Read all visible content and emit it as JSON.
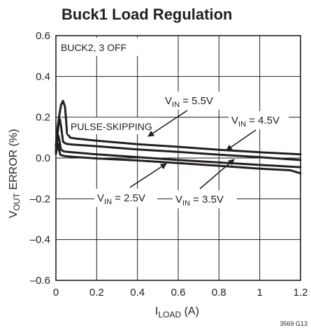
{
  "chart_data": {
    "type": "line",
    "title": "Buck1 Load Regulation",
    "xlabel": {
      "main": "I",
      "sub": "LOAD",
      "unit": " (A)"
    },
    "ylabel": {
      "main": "V",
      "sub": "OUT",
      "unit": " ERROR (%)"
    },
    "xlim": [
      0,
      1.2
    ],
    "ylim": [
      -0.6,
      0.6
    ],
    "x_ticks": [
      0,
      0.2,
      0.4,
      0.6,
      0.8,
      1.0,
      1.2
    ],
    "x_tick_labels": [
      "0",
      "0.2",
      "0.4",
      "0.6",
      "0.8",
      "1",
      "1.2"
    ],
    "y_ticks": [
      -0.6,
      -0.4,
      -0.2,
      0.0,
      0.2,
      0.4,
      0.6
    ],
    "y_tick_labels": [
      "–0.6",
      "–0.4",
      "–0.2",
      "0.0",
      "0.2",
      "0.4",
      "0.6"
    ],
    "grid": true,
    "condition_label": "BUCK2, 3 OFF",
    "mode_label": "PULSE-SKIPPING",
    "figure_code": "3569 G13",
    "series": [
      {
        "name": "V_IN = 5.5V",
        "x": [
          0.0,
          0.005,
          0.015,
          0.025,
          0.035,
          0.045,
          0.055,
          0.07,
          0.1,
          0.2,
          0.4,
          0.6,
          0.8,
          1.0,
          1.2
        ],
        "y": [
          0.06,
          0.12,
          0.2,
          0.26,
          0.28,
          0.25,
          0.12,
          0.1,
          0.095,
          0.085,
          0.068,
          0.055,
          0.04,
          0.028,
          0.018
        ]
      },
      {
        "name": "V_IN = 4.5V",
        "x": [
          0.0,
          0.006,
          0.014,
          0.02,
          0.026,
          0.035,
          0.05,
          0.08,
          0.2,
          0.4,
          0.6,
          0.8,
          1.0,
          1.2
        ],
        "y": [
          0.04,
          0.1,
          0.17,
          0.19,
          0.15,
          0.08,
          0.07,
          0.066,
          0.058,
          0.042,
          0.03,
          0.016,
          0.004,
          -0.01
        ]
      },
      {
        "name": "V_IN = 3.5V",
        "x": [
          0.0,
          0.006,
          0.012,
          0.018,
          0.025,
          0.04,
          0.08,
          0.2,
          0.4,
          0.6,
          0.8,
          1.0,
          1.2
        ],
        "y": [
          0.03,
          0.08,
          0.11,
          0.08,
          0.04,
          0.032,
          0.028,
          0.018,
          0.004,
          -0.01,
          -0.022,
          -0.034,
          -0.045
        ]
      },
      {
        "name": "V_IN = 2.5V",
        "x": [
          0.0,
          0.005,
          0.01,
          0.015,
          0.022,
          0.04,
          0.08,
          0.2,
          0.4,
          0.6,
          0.8,
          1.0,
          1.15,
          1.2
        ],
        "y": [
          0.02,
          0.05,
          0.07,
          0.04,
          0.015,
          0.01,
          0.006,
          -0.002,
          -0.012,
          -0.025,
          -0.038,
          -0.052,
          -0.06,
          -0.075
        ]
      }
    ],
    "annotations": [
      {
        "series": 0,
        "prefix": "V",
        "sub": "IN",
        "value": " = 5.5V"
      },
      {
        "series": 1,
        "prefix": "V",
        "sub": "IN",
        "value": " = 4.5V"
      },
      {
        "series": 2,
        "prefix": "V",
        "sub": "IN",
        "value": " = 3.5V"
      },
      {
        "series": 3,
        "prefix": "V",
        "sub": "IN",
        "value": " = 2.5V"
      }
    ]
  }
}
